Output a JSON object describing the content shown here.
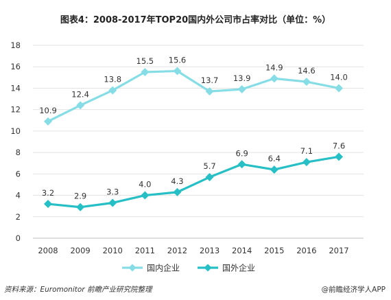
{
  "title": "图表4：2008-2017年TOP20国内外公司市占率对比（单位：%）",
  "source": "资料来源：Euromonitor 前瞻产业研究院整理",
  "brand": "@前瞻经济学人APP",
  "chart_data": {
    "type": "line",
    "title": "图表4：2008-2017年TOP20国内外公司市占率对比（单位：%）",
    "categories": [
      "2008",
      "2009",
      "2010",
      "2011",
      "2012",
      "2013",
      "2014",
      "2015",
      "2016",
      "2017"
    ],
    "ylim": [
      0,
      18
    ],
    "yticks": [
      0,
      2,
      4,
      6,
      8,
      10,
      12,
      14,
      16,
      18
    ],
    "grid": true,
    "legend_position": "bottom",
    "series": [
      {
        "name": "国内企业",
        "color": "#86dde6",
        "values": [
          10.9,
          12.4,
          13.8,
          15.5,
          15.6,
          13.7,
          13.9,
          14.9,
          14.6,
          14.0
        ],
        "labels": [
          "10.9",
          "12.4",
          "13.8",
          "15.5",
          "15.6",
          "13.7",
          "13.9",
          "14.9",
          "14.6",
          "14.0"
        ]
      },
      {
        "name": "国外企业",
        "color": "#26bfc6",
        "values": [
          3.2,
          2.9,
          3.3,
          4.0,
          4.3,
          5.7,
          6.9,
          6.4,
          7.1,
          7.6
        ],
        "labels": [
          "3.2",
          "2.9",
          "3.3",
          "4.0",
          "4.3",
          "5.7",
          "6.9",
          "6.4",
          "7.1",
          "7.6"
        ]
      }
    ]
  }
}
